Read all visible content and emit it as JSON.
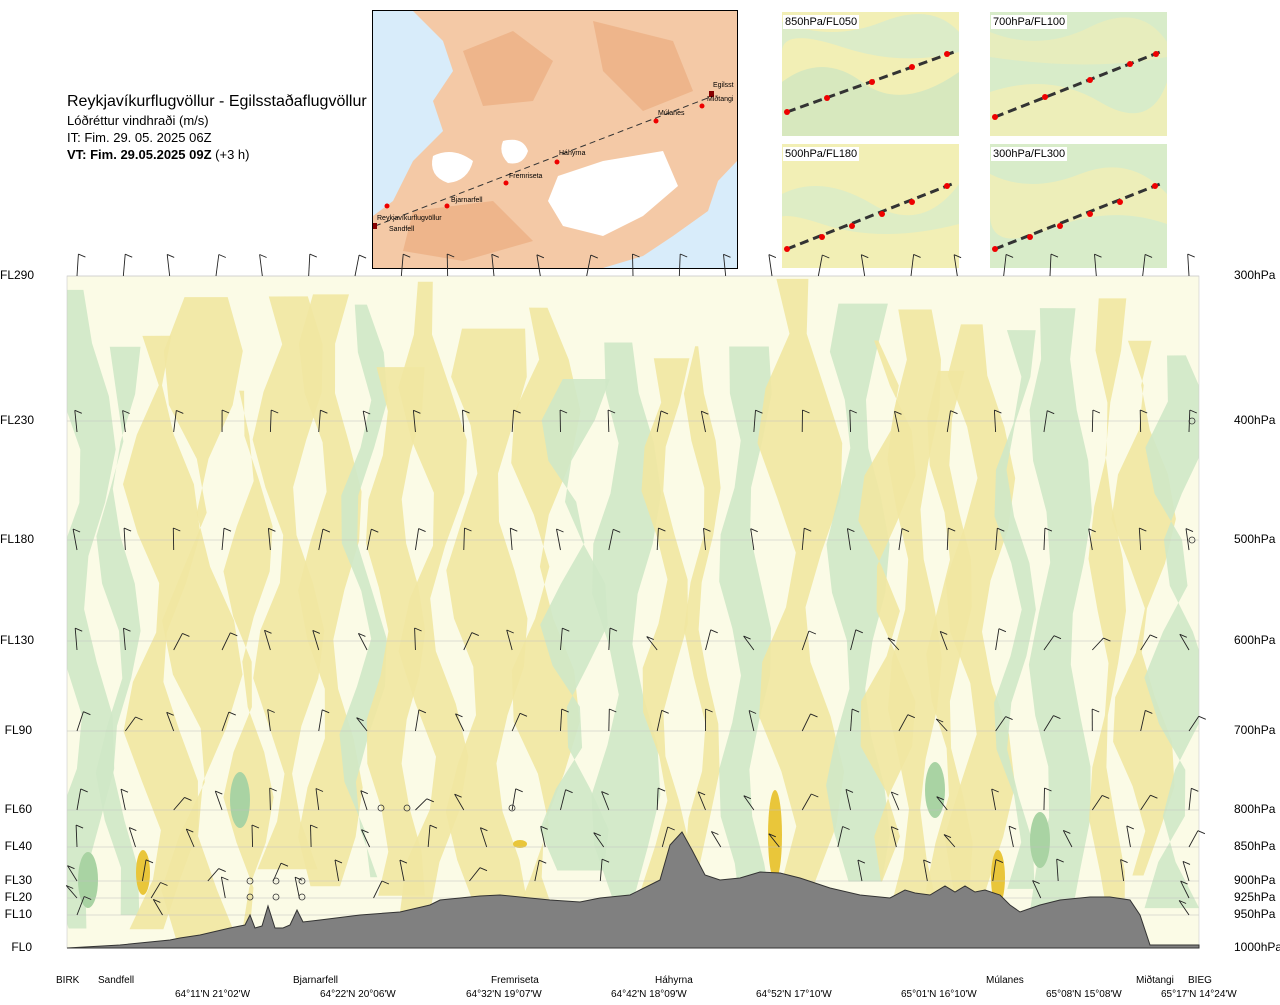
{
  "header": {
    "title": "Reykjavíkurflugvöllur - Egilsstaðaflugvöllur",
    "subtitle": "Lóðréttur vindhraði (m/s)",
    "issue_time": "IT: Fim. 29. 05. 2025 06Z",
    "valid_time_bold": "VT: Fim. 29.05.2025 09Z",
    "valid_time_offset": "(+3 h)"
  },
  "map": {
    "points": [
      "Reykjavíkurflugvöllur",
      "Sandfell",
      "Bjarnarfell",
      "Fremriseta",
      "Háhyrna",
      "Múlanes",
      "Miðtangi",
      "Egilsst"
    ]
  },
  "thumbnails": [
    {
      "label": "850hPa/FL050"
    },
    {
      "label": "700hPa/FL100"
    },
    {
      "label": "500hPa/FL180"
    },
    {
      "label": "300hPa/FL300"
    }
  ],
  "chart_data": {
    "type": "cross-section",
    "title": "Lóðréttur vindhraði (m/s)",
    "levels": [
      {
        "fl": "FL290",
        "hpa": "300hPa"
      },
      {
        "fl": "FL230",
        "hpa": "400hPa"
      },
      {
        "fl": "FL180",
        "hpa": "500hPa"
      },
      {
        "fl": "FL130",
        "hpa": "600hPa"
      },
      {
        "fl": "FL90",
        "hpa": "700hPa"
      },
      {
        "fl": "FL60",
        "hpa": "800hPa"
      },
      {
        "fl": "FL40",
        "hpa": "850hPa"
      },
      {
        "fl": "FL30",
        "hpa": "900hPa"
      },
      {
        "fl": "FL20",
        "hpa": "925hPa"
      },
      {
        "fl": "FL10",
        "hpa": "950hPa"
      },
      {
        "fl": "FL0",
        "hpa": "1000hPa"
      }
    ],
    "stations": [
      "BIRK",
      "Sandfell",
      "Bjarnarfell",
      "Fremriseta",
      "Háhyrna",
      "Múlanes",
      "Miðtangi",
      "BIEG"
    ],
    "coordinates": [
      "64°11'N 21°02'W",
      "64°22'N 20°06'W",
      "64°32'N 19°07'W",
      "64°42'N 18°09'W",
      "64°52'N 17°10'W",
      "65°01'N 16°10'W",
      "65°08'N 15°08'W",
      "65°17'N 14°24'W"
    ],
    "colors": {
      "up": "#f1e7a1",
      "up_strong": "#e9c63a",
      "down": "#cfe8c6",
      "down_strong": "#a9d3a3",
      "neutral": "#fbfbe6",
      "terrain": "#808080"
    }
  }
}
